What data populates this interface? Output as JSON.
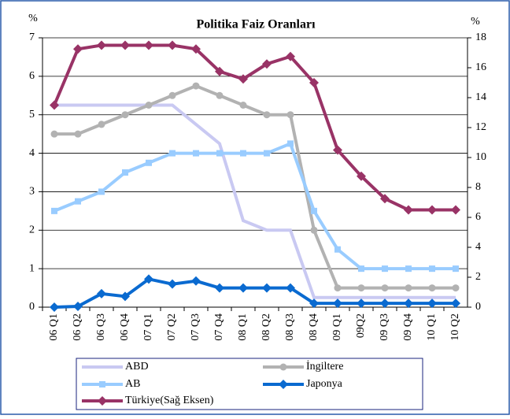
{
  "chart_data": {
    "type": "line",
    "title": "Politika Faiz Oranları",
    "y_label": "%",
    "y2_label": "%",
    "categories": [
      "06 Q1",
      "06 Q2",
      "06 Q3",
      "06 Q4",
      "07 Q1",
      "07 Q2",
      "07 Q3",
      "07 Q4",
      "08 Q1",
      "08 Q2",
      "08 Q3",
      "08 Q4",
      "09 Q1",
      "09Q2",
      "09 Q3",
      "09 Q4",
      "10 Q1",
      "10 Q2"
    ],
    "ylim": [
      0,
      7
    ],
    "yticks": [
      0,
      1,
      2,
      3,
      4,
      5,
      6,
      7
    ],
    "y2lim": [
      0,
      18
    ],
    "y2ticks": [
      0,
      2,
      4,
      6,
      8,
      10,
      12,
      14,
      16,
      18
    ],
    "grid": true,
    "series": [
      {
        "name": "ABD",
        "color": "#c9c9f2",
        "marker": "none",
        "values": [
          5.25,
          5.25,
          5.25,
          5.25,
          5.25,
          5.25,
          4.75,
          4.25,
          2.25,
          2.0,
          2.0,
          0.25,
          0.25,
          0.25,
          0.25,
          0.25,
          0.25,
          0.25
        ]
      },
      {
        "name": "İngiltere",
        "color": "#b2b2b2",
        "marker": "circle",
        "values": [
          4.5,
          4.5,
          4.75,
          5.0,
          5.25,
          5.5,
          5.75,
          5.5,
          5.25,
          5.0,
          5.0,
          2.0,
          0.5,
          0.5,
          0.5,
          0.5,
          0.5,
          0.5
        ]
      },
      {
        "name": "AB",
        "color": "#99ccff",
        "marker": "square",
        "values": [
          2.5,
          2.75,
          3.0,
          3.5,
          3.75,
          4.0,
          4.0,
          4.0,
          4.0,
          4.0,
          4.25,
          2.5,
          1.5,
          1.0,
          1.0,
          1.0,
          1.0,
          1.0
        ]
      },
      {
        "name": "Japonya",
        "color": "#0a6ad0",
        "marker": "diamond",
        "values": [
          0,
          0.02,
          0.35,
          0.28,
          0.73,
          0.6,
          0.68,
          0.5,
          0.5,
          0.5,
          0.5,
          0.1,
          0.1,
          0.1,
          0.1,
          0.1,
          0.1,
          0.1
        ]
      },
      {
        "name": "Türkiye(Sağ Eksen)",
        "color": "#993366",
        "marker": "diamond",
        "axis": "y2",
        "values": [
          13.5,
          17.25,
          17.5,
          17.5,
          17.5,
          17.5,
          17.25,
          15.75,
          15.25,
          16.25,
          16.75,
          15.0,
          10.5,
          8.75,
          7.25,
          6.5,
          6.5,
          6.5
        ]
      }
    ]
  }
}
